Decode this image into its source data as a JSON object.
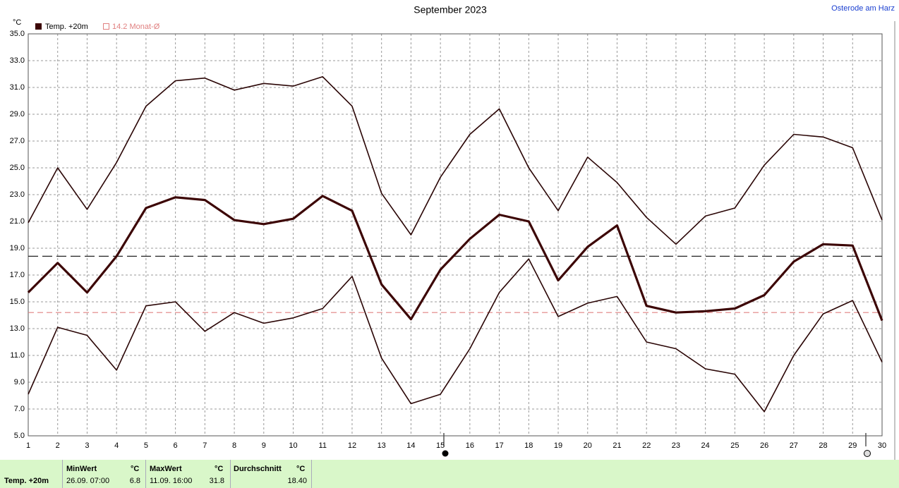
{
  "chart_data": {
    "type": "line",
    "title": "September 2023",
    "y_unit": "°C",
    "x": [
      1,
      2,
      3,
      4,
      5,
      6,
      7,
      8,
      9,
      10,
      11,
      12,
      13,
      14,
      15,
      16,
      17,
      18,
      19,
      20,
      21,
      22,
      23,
      24,
      25,
      26,
      27,
      28,
      29,
      30
    ],
    "xlim": [
      1,
      30
    ],
    "xticks": [
      1,
      2,
      3,
      4,
      5,
      6,
      7,
      8,
      9,
      10,
      11,
      12,
      13,
      14,
      15,
      16,
      17,
      18,
      19,
      20,
      21,
      22,
      23,
      24,
      25,
      26,
      27,
      28,
      29,
      30
    ],
    "ylim": [
      5,
      35
    ],
    "yticks": [
      {
        "value": 5,
        "label": "5.0"
      },
      {
        "value": 7,
        "label": "7.0"
      },
      {
        "value": 9,
        "label": "9.0"
      },
      {
        "value": 11,
        "label": "11.0"
      },
      {
        "value": 13,
        "label": "13.0"
      },
      {
        "value": 15,
        "label": "15.0"
      },
      {
        "value": 17,
        "label": "17.0"
      },
      {
        "value": 19,
        "label": "19.0"
      },
      {
        "value": 21,
        "label": "21.0"
      },
      {
        "value": 23,
        "label": "23.0"
      },
      {
        "value": 25,
        "label": "25.0"
      },
      {
        "value": 27,
        "label": "27.0"
      },
      {
        "value": 29,
        "label": "29.0"
      },
      {
        "value": 31,
        "label": "31.0"
      },
      {
        "value": 33,
        "label": "33.0"
      },
      {
        "value": 35,
        "label": "35.0"
      }
    ],
    "grid": true,
    "series": [
      {
        "color": "#2a0505",
        "line_width": 1.6,
        "values": [
          20.9,
          25.0,
          21.9,
          25.4,
          29.6,
          31.5,
          31.7,
          30.8,
          31.3,
          31.1,
          31.8,
          29.6,
          23.1,
          20.0,
          24.3,
          27.5,
          29.4,
          25.0,
          21.8,
          25.8,
          23.9,
          21.3,
          19.3,
          21.4,
          22.0,
          25.2,
          27.5,
          27.3,
          26.5,
          21.1
        ]
      },
      {
        "name": "Temp. +20m",
        "color": "#3c0505",
        "line_width": 3.2,
        "values": [
          15.7,
          17.9,
          15.7,
          18.4,
          22.0,
          22.8,
          22.6,
          21.1,
          20.8,
          21.2,
          22.9,
          21.8,
          16.3,
          13.7,
          17.4,
          19.7,
          21.5,
          21.0,
          16.6,
          19.1,
          20.7,
          14.7,
          14.2,
          14.3,
          14.5,
          15.5,
          18.0,
          19.3,
          19.2,
          13.6
        ]
      },
      {
        "color": "#2a0505",
        "line_width": 1.6,
        "values": [
          8.1,
          13.1,
          12.5,
          9.9,
          14.7,
          15.0,
          12.8,
          14.2,
          13.4,
          13.8,
          14.5,
          16.9,
          10.8,
          7.4,
          8.1,
          11.5,
          15.7,
          18.2,
          13.9,
          14.9,
          15.4,
          12.0,
          11.5,
          10.0,
          9.6,
          6.8,
          11.0,
          14.1,
          15.1,
          10.5
        ]
      }
    ],
    "reference_lines": [
      {
        "value": 18.4,
        "color": "#222222"
      },
      {
        "value": 14.2,
        "color": "#e08080",
        "label": "14.2 Monat-Ø"
      }
    ]
  },
  "header": {
    "location": "Osterode am Harz"
  },
  "stats": {
    "label": "Temp. +20m",
    "columns": [
      {
        "title": "MinWert",
        "unit": "°C",
        "when": "26.09.  07:00",
        "value": "6.8"
      },
      {
        "title": "MaxWert",
        "unit": "°C",
        "when": "11.09.  16:00",
        "value": "31.8"
      },
      {
        "title": "Durchschnitt",
        "unit": "°C",
        "value": "18.40"
      }
    ]
  }
}
